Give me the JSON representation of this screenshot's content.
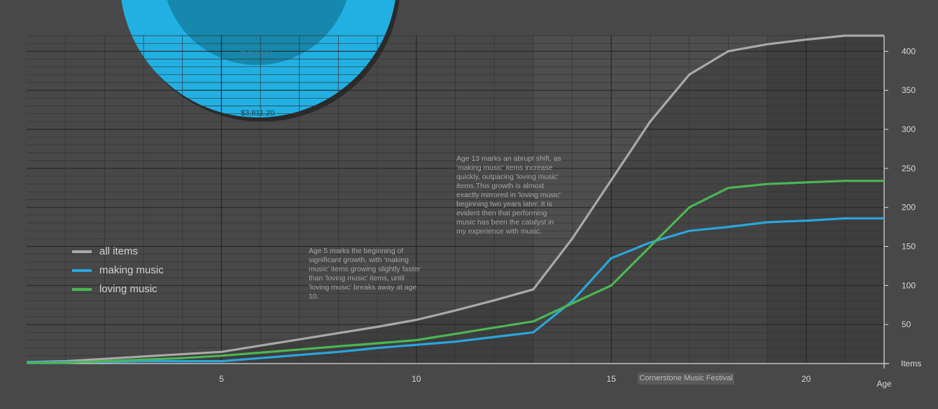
{
  "chart_data": {
    "type": "line",
    "title": "",
    "xlabel": "Age",
    "ylabel": "Items",
    "xlim": [
      0,
      22
    ],
    "ylim": [
      0,
      420
    ],
    "x_ticks": [
      5,
      10,
      15,
      20
    ],
    "y_ticks": [
      50,
      100,
      150,
      200,
      250,
      300,
      350,
      400
    ],
    "x": [
      0,
      1,
      2,
      3,
      4,
      5,
      6,
      7,
      8,
      9,
      10,
      11,
      12,
      13,
      14,
      15,
      16,
      17,
      18,
      19,
      20,
      21,
      22
    ],
    "series": [
      {
        "name": "all items",
        "color": "#a9a9a9",
        "values": [
          2,
          3,
          6,
          9,
          12,
          15,
          23,
          31,
          39,
          47,
          56,
          68,
          81,
          95,
          160,
          235,
          310,
          370,
          400,
          409,
          415,
          420,
          420
        ]
      },
      {
        "name": "making music",
        "color": "#2aa6dc",
        "values": [
          2,
          2,
          2,
          3,
          3,
          3,
          7,
          11,
          15,
          20,
          24,
          28,
          34,
          40,
          80,
          135,
          155,
          170,
          175,
          181,
          183,
          186,
          186
        ]
      },
      {
        "name": "loving music",
        "color": "#4bb654",
        "values": [
          1,
          1,
          3,
          5,
          7,
          10,
          14,
          18,
          22,
          26,
          30,
          38,
          46,
          54,
          77,
          100,
          150,
          200,
          225,
          230,
          232,
          234,
          234
        ]
      }
    ],
    "annotations": [
      "Age 5 marks the beginning of significant growth, with 'making music' items growing slightly faster than 'loving music' items, until 'loving music' breaks away at age 10.",
      "Age 13 marks an abrupt shift, as 'making music' items increase quickly, outpacing 'loving music' items.This growth is almost exactly mirrored in 'loving music' beginning two years later. It is evident then that performing music has been the catalyst in my experience with music."
    ],
    "highlight_label": "Cornerstone Music Festival",
    "pie_labels": [
      "$UNKNN",
      "$3,811.20"
    ],
    "legend": [
      "all items",
      "making music",
      "loving music"
    ]
  }
}
